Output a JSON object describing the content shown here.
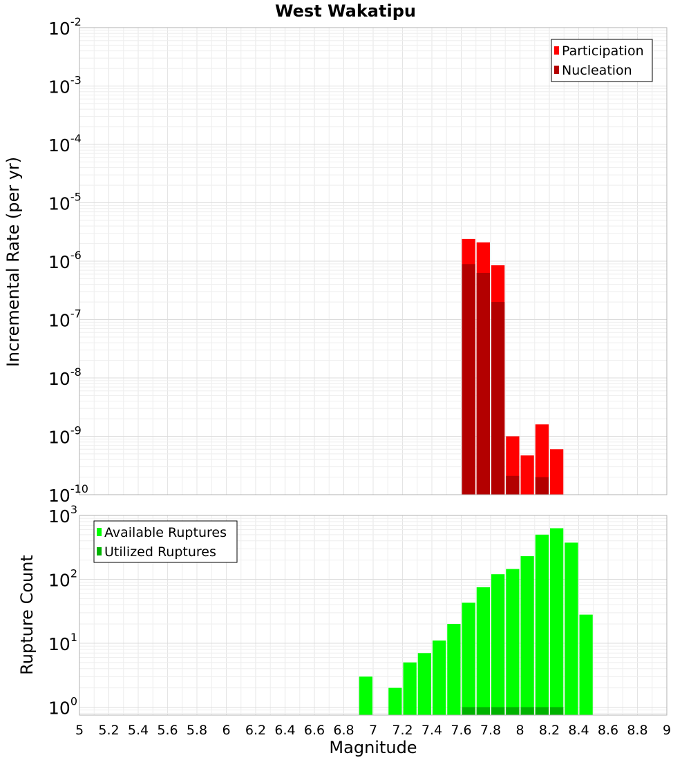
{
  "chart_data": [
    {
      "type": "bar",
      "title": "West Wakatipu",
      "xlabel": "",
      "ylabel": "Incremental Rate (per yr)",
      "yscale": "log",
      "ylim": [
        1e-10,
        0.01
      ],
      "xlim": [
        5,
        9
      ],
      "grid": true,
      "legend_position": "top-right",
      "bar_width": 0.1,
      "y_tick_labels": [
        {
          "base": "10",
          "exp": "-10"
        },
        {
          "base": "10",
          "exp": "-9"
        },
        {
          "base": "10",
          "exp": "-8"
        },
        {
          "base": "10",
          "exp": "-7"
        },
        {
          "base": "10",
          "exp": "-6"
        },
        {
          "base": "10",
          "exp": "-5"
        },
        {
          "base": "10",
          "exp": "-4"
        },
        {
          "base": "10",
          "exp": "-3"
        },
        {
          "base": "10",
          "exp": "-2"
        }
      ],
      "series": [
        {
          "name": "Participation",
          "color": "#ff0000",
          "x": [
            7.65,
            7.75,
            7.85,
            7.95,
            8.05,
            8.15,
            8.25
          ],
          "values": [
            2.4e-06,
            2.1e-06,
            8.5e-07,
            1e-09,
            4.7e-10,
            1.6e-09,
            6e-10
          ]
        },
        {
          "name": "Nucleation",
          "color": "#b30000",
          "x": [
            7.65,
            7.75,
            7.85,
            7.95,
            8.15
          ],
          "values": [
            8.9e-07,
            6.3e-07,
            2e-07,
            2.1e-10,
            2e-10
          ]
        }
      ]
    },
    {
      "type": "bar",
      "title": "",
      "xlabel": "Magnitude",
      "ylabel": "Rupture Count",
      "yscale": "log",
      "ylim": [
        0.75,
        1000
      ],
      "xlim": [
        5,
        9
      ],
      "grid": true,
      "legend_position": "top-left",
      "bar_width": 0.1,
      "x_tick_labels": [
        "5",
        "5.2",
        "5.4",
        "5.6",
        "5.8",
        "6",
        "6.2",
        "6.4",
        "6.6",
        "6.8",
        "7",
        "7.2",
        "7.4",
        "7.6",
        "7.8",
        "8",
        "8.2",
        "8.4",
        "8.6",
        "8.8",
        "9"
      ],
      "y_tick_labels": [
        {
          "base": "10",
          "exp": "0"
        },
        {
          "base": "10",
          "exp": "1"
        },
        {
          "base": "10",
          "exp": "2"
        },
        {
          "base": "10",
          "exp": "3"
        }
      ],
      "series": [
        {
          "name": "Available Ruptures",
          "color": "#00ff00",
          "x": [
            6.95,
            7.15,
            7.25,
            7.35,
            7.45,
            7.55,
            7.65,
            7.75,
            7.85,
            7.95,
            8.05,
            8.15,
            8.25,
            8.35,
            8.45
          ],
          "values": [
            3,
            2,
            5,
            7,
            11,
            20,
            43,
            75,
            120,
            145,
            230,
            500,
            630,
            375,
            28
          ]
        },
        {
          "name": "Utilized Ruptures",
          "color": "#00b300",
          "x": [
            7.65,
            7.75,
            7.85,
            7.95,
            8.05,
            8.15,
            8.25
          ],
          "values": [
            1,
            1,
            1,
            1,
            1,
            1,
            1
          ]
        }
      ]
    }
  ]
}
